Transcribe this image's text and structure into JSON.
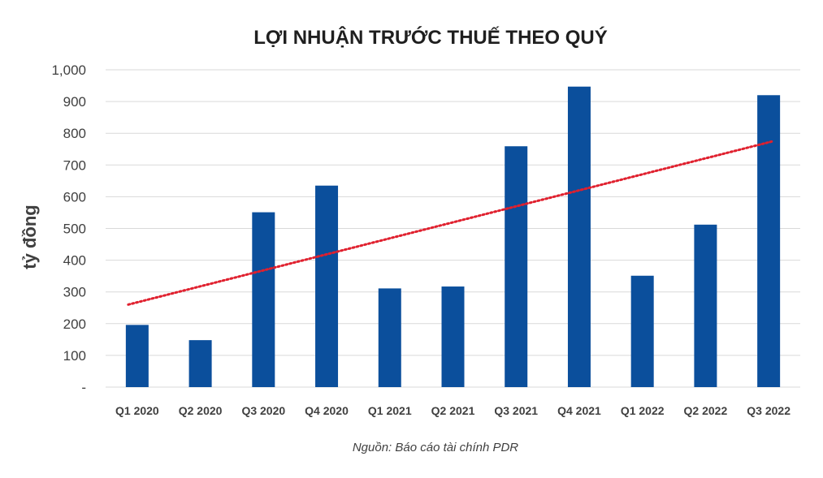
{
  "chart_data": {
    "type": "bar",
    "title": "LỢI NHUẬN TRƯỚC THUẾ THEO QUÝ",
    "ylabel": "tỷ đồng",
    "xlabel": "",
    "source": "Nguồn: Báo cáo tài chính PDR",
    "categories": [
      "Q1 2020",
      "Q2 2020",
      "Q3 2020",
      "Q4 2020",
      "Q1 2021",
      "Q2 2021",
      "Q3 2021",
      "Q4 2021",
      "Q1 2022",
      "Q2 2022",
      "Q3 2022"
    ],
    "values": [
      196,
      148,
      551,
      635,
      311,
      317,
      759,
      947,
      351,
      512,
      920
    ],
    "ylim": [
      0,
      1000
    ],
    "yticks": [
      0,
      100,
      200,
      300,
      400,
      500,
      600,
      700,
      800,
      900,
      1000
    ],
    "ytick_labels": [
      "-",
      "100",
      "200",
      "300",
      "400",
      "500",
      "600",
      "700",
      "800",
      "900",
      "1,000"
    ],
    "grid": true,
    "legend": "none",
    "trendline": {
      "type": "linear",
      "style": "dotted",
      "color": "#e0202e",
      "start": 260,
      "end": 774
    },
    "colors": {
      "bar": "#0b4f9c",
      "grid": "#d9d9d9",
      "text": "#404040"
    }
  }
}
